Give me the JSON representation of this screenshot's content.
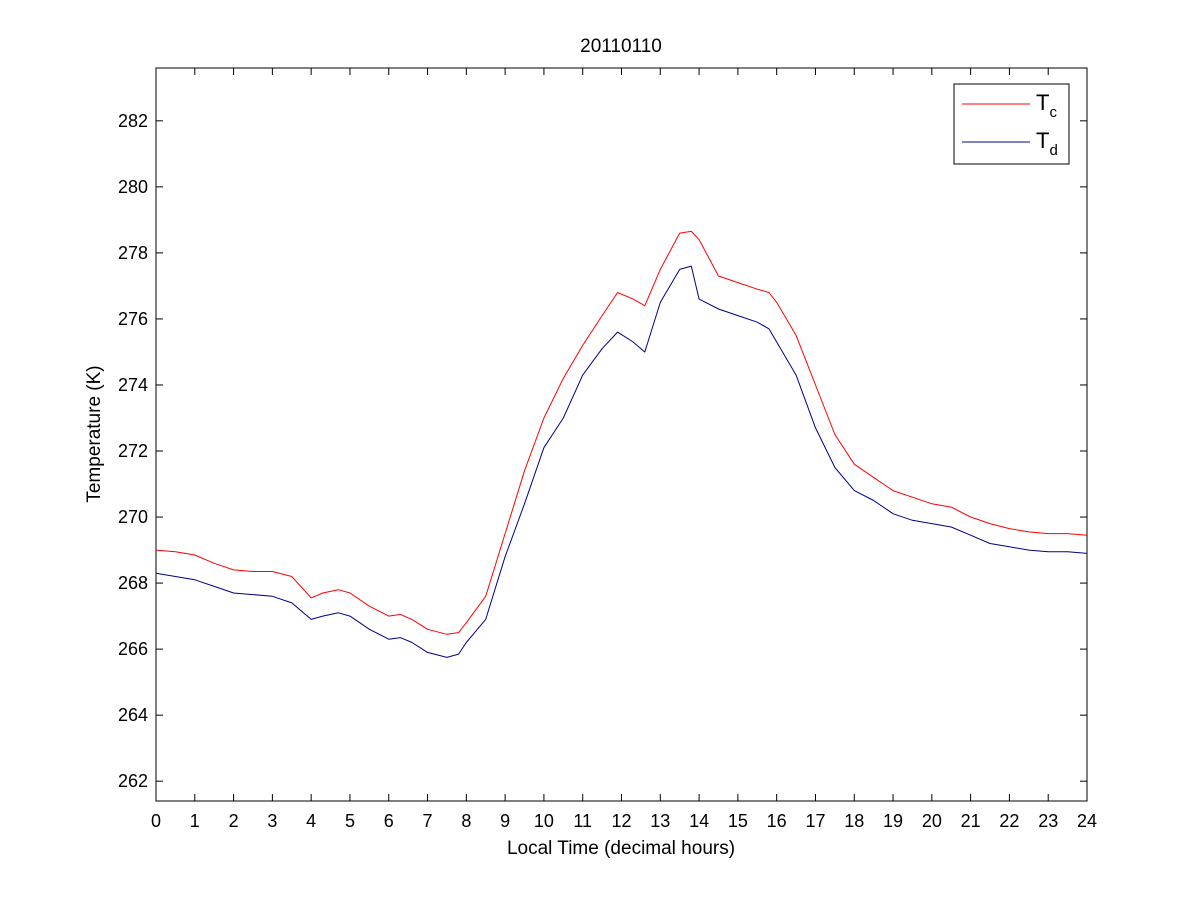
{
  "chart_data": {
    "type": "line",
    "title": "20110110",
    "xlabel": "Local Time (decimal hours)",
    "ylabel": "Temperature (K)",
    "xlim": [
      0,
      24
    ],
    "ylim": [
      261.4,
      283.6
    ],
    "xticks": [
      0,
      1,
      2,
      3,
      4,
      5,
      6,
      7,
      8,
      9,
      10,
      11,
      12,
      13,
      14,
      15,
      16,
      17,
      18,
      19,
      20,
      21,
      22,
      23,
      24
    ],
    "yticks": [
      262,
      264,
      266,
      268,
      270,
      272,
      274,
      276,
      278,
      280,
      282
    ],
    "grid": false,
    "legend_position": "top-right",
    "series": [
      {
        "name": "T_c",
        "label_main": "T",
        "label_sub": "c",
        "color": "#ff0000",
        "x": [
          0,
          0.5,
          1,
          1.5,
          2,
          2.5,
          3,
          3.5,
          4,
          4.3,
          4.7,
          5,
          5.5,
          6,
          6.3,
          6.6,
          7,
          7.5,
          7.8,
          8,
          8.5,
          9,
          9.5,
          10,
          10.5,
          11,
          11.5,
          11.9,
          12.3,
          12.6,
          13,
          13.5,
          13.8,
          14,
          14.5,
          15,
          15.5,
          15.8,
          16,
          16.5,
          17,
          17.5,
          18,
          18.5,
          19,
          19.5,
          20,
          20.5,
          21,
          21.5,
          22,
          22.5,
          23,
          23.5,
          24
        ],
        "y": [
          269.0,
          268.95,
          268.85,
          268.6,
          268.4,
          268.35,
          268.35,
          268.2,
          267.55,
          267.7,
          267.8,
          267.7,
          267.3,
          267.0,
          267.05,
          266.9,
          266.6,
          266.45,
          266.5,
          266.8,
          267.6,
          269.5,
          271.4,
          273.0,
          274.2,
          275.2,
          276.1,
          276.8,
          276.6,
          276.4,
          277.5,
          278.6,
          278.65,
          278.4,
          277.3,
          277.1,
          276.9,
          276.8,
          276.5,
          275.5,
          274.0,
          272.5,
          271.6,
          271.2,
          270.8,
          270.6,
          270.4,
          270.3,
          270.0,
          269.8,
          269.65,
          269.55,
          269.5,
          269.5,
          269.45
        ]
      },
      {
        "name": "T_d",
        "label_main": "T",
        "label_sub": "d",
        "color": "#00008b",
        "x": [
          0,
          0.5,
          1,
          1.5,
          2,
          2.5,
          3,
          3.5,
          4,
          4.3,
          4.7,
          5,
          5.5,
          6,
          6.3,
          6.6,
          7,
          7.5,
          7.8,
          8,
          8.5,
          9,
          9.5,
          10,
          10.5,
          11,
          11.5,
          11.9,
          12.3,
          12.6,
          13,
          13.5,
          13.8,
          14,
          14.5,
          15,
          15.5,
          15.8,
          16,
          16.5,
          17,
          17.5,
          18,
          18.5,
          19,
          19.5,
          20,
          20.5,
          21,
          21.5,
          22,
          22.5,
          23,
          23.5,
          24
        ],
        "y": [
          268.3,
          268.2,
          268.1,
          267.9,
          267.7,
          267.65,
          267.6,
          267.4,
          266.9,
          267.0,
          267.1,
          267.0,
          266.6,
          266.3,
          266.35,
          266.2,
          265.9,
          265.75,
          265.85,
          266.2,
          266.9,
          268.8,
          270.4,
          272.1,
          273.0,
          274.3,
          275.1,
          275.6,
          275.3,
          275.0,
          276.5,
          277.5,
          277.6,
          276.6,
          276.3,
          276.1,
          275.9,
          275.7,
          275.3,
          274.3,
          272.7,
          271.5,
          270.8,
          270.5,
          270.1,
          269.9,
          269.8,
          269.7,
          269.45,
          269.2,
          269.1,
          269.0,
          268.95,
          268.95,
          268.9
        ]
      }
    ]
  }
}
